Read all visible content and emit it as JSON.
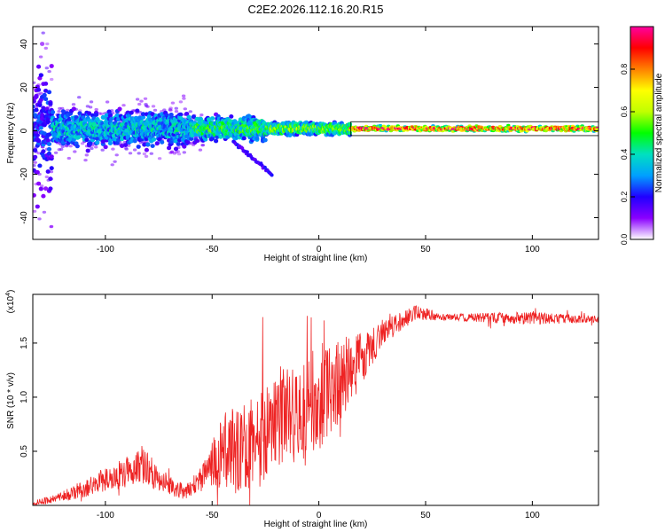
{
  "title": "C2E2.2026.112.16.20.R15",
  "chart_data": [
    {
      "type": "heatmap",
      "name": "frequency-spectrogram",
      "xlabel": "Height of straight line (km)",
      "ylabel": "Frequency (Hz)",
      "xlim": [
        -134,
        131
      ],
      "ylim": [
        -50,
        48
      ],
      "xticks": [
        -100,
        -50,
        0,
        50,
        100
      ],
      "yticks": [
        -40,
        -20,
        0,
        20,
        40
      ],
      "colorbar": {
        "label": "Normalized spectral amplitude",
        "range": [
          0,
          1
        ],
        "ticks": [
          "0.0",
          "0.2",
          "0.4",
          "0.6",
          "0.8"
        ],
        "colormap": [
          "#ffffff",
          "#8a00ff",
          "#2000ff",
          "#00a0ff",
          "#00e0c0",
          "#00ff00",
          "#c0ff00",
          "#ffff00",
          "#ff8000",
          "#ff0000",
          "#ff00a0"
        ]
      },
      "centerline_hz": 1,
      "bands": [
        {
          "x_range": [
            -134,
            -125
          ],
          "spread_hz": 45,
          "amp": 0.25
        },
        {
          "x_range": [
            -125,
            -60
          ],
          "spread_hz": 12,
          "amp": 0.4
        },
        {
          "x_range": [
            -60,
            -25
          ],
          "spread_hz": 8,
          "amp": 0.5
        },
        {
          "x_range": [
            -25,
            15
          ],
          "spread_hz": 4,
          "amp": 0.6
        },
        {
          "x_range": [
            15,
            131
          ],
          "spread_hz": 2,
          "amp": 0.95
        }
      ],
      "tail_segment": {
        "x": [
          -40,
          -22
        ],
        "y": [
          -5,
          -20
        ]
      }
    },
    {
      "type": "line",
      "name": "snr-trace",
      "xlabel": "Height of straight line (km)",
      "ylabel": "SNR (10 * v/v)",
      "multiplier_label": "(x10",
      "multiplier_exp": "4",
      "multiplier_close": ")",
      "color": "#ee2222",
      "xlim": [
        -134,
        131
      ],
      "ylim": [
        0,
        1.95
      ],
      "xticks": [
        -100,
        -50,
        0,
        50,
        100
      ],
      "yticks": [
        0.5,
        1.0,
        1.5
      ],
      "ytick_labels": [
        "0.5",
        "1.0",
        "1.5"
      ],
      "envelope": [
        {
          "x": -134,
          "mean": 0.02,
          "noise": 0.02
        },
        {
          "x": -120,
          "mean": 0.08,
          "noise": 0.05
        },
        {
          "x": -105,
          "mean": 0.2,
          "noise": 0.1
        },
        {
          "x": -90,
          "mean": 0.3,
          "noise": 0.15
        },
        {
          "x": -82,
          "mean": 0.4,
          "noise": 0.2
        },
        {
          "x": -75,
          "mean": 0.22,
          "noise": 0.1
        },
        {
          "x": -62,
          "mean": 0.12,
          "noise": 0.07
        },
        {
          "x": -55,
          "mean": 0.25,
          "noise": 0.12
        },
        {
          "x": -45,
          "mean": 0.5,
          "noise": 0.35
        },
        {
          "x": -30,
          "mean": 0.55,
          "noise": 0.45
        },
        {
          "x": -20,
          "mean": 0.8,
          "noise": 0.5
        },
        {
          "x": -10,
          "mean": 0.85,
          "noise": 0.45
        },
        {
          "x": 0,
          "mean": 1.0,
          "noise": 0.5
        },
        {
          "x": 10,
          "mean": 1.15,
          "noise": 0.4
        },
        {
          "x": 20,
          "mean": 1.35,
          "noise": 0.25
        },
        {
          "x": 30,
          "mean": 1.6,
          "noise": 0.12
        },
        {
          "x": 45,
          "mean": 1.78,
          "noise": 0.07
        },
        {
          "x": 60,
          "mean": 1.74,
          "noise": 0.03
        },
        {
          "x": 80,
          "mean": 1.73,
          "noise": 0.05
        },
        {
          "x": 100,
          "mean": 1.73,
          "noise": 0.06
        },
        {
          "x": 131,
          "mean": 1.72,
          "noise": 0.03
        }
      ]
    }
  ]
}
